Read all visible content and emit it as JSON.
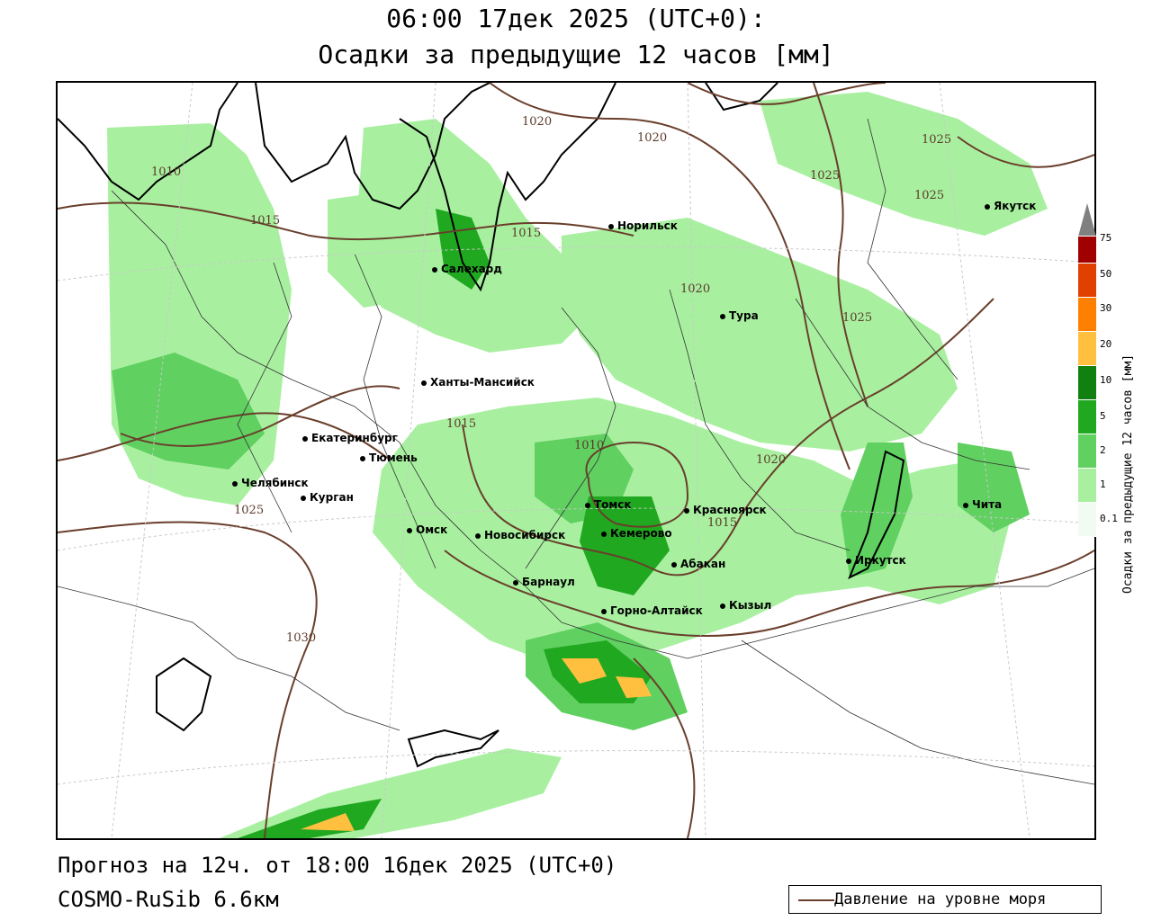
{
  "title": {
    "line1": "06:00 17дек 2025 (UTC+0):",
    "line2": "Осадки за предыдущие 12 часов [мм]"
  },
  "footer": {
    "forecast": "Прогноз на 12ч. от 18:00 16дек 2025 (UTC+0)",
    "model": "COSMO-RuSib 6.6км",
    "legend_label": "Давление на уровне моря"
  },
  "colorbar": {
    "label": "Осадки за предыдущие 12 часов [мм]",
    "ticks": [
      "0.1",
      "1",
      "2",
      "5",
      "10",
      "20",
      "30",
      "50",
      "75"
    ],
    "colors": [
      "#f2fbf2",
      "#a8f0a0",
      "#60d060",
      "#20a820",
      "#108010",
      "#ffc040",
      "#ff8000",
      "#e04000",
      "#a00000",
      "#808080"
    ]
  },
  "cities": [
    {
      "name": "Якутск"
    },
    {
      "name": "Норильск"
    },
    {
      "name": "Салехард"
    },
    {
      "name": "Тура"
    },
    {
      "name": "Ханты-Мансийск"
    },
    {
      "name": "Екатеринбург"
    },
    {
      "name": "Тюмень"
    },
    {
      "name": "Челябинск"
    },
    {
      "name": "Курган"
    },
    {
      "name": "Омск"
    },
    {
      "name": "Новосибирск"
    },
    {
      "name": "Томск"
    },
    {
      "name": "Кемерово"
    },
    {
      "name": "Красноярск"
    },
    {
      "name": "Абакан"
    },
    {
      "name": "Барнаул"
    },
    {
      "name": "Горно-Алтайск"
    },
    {
      "name": "Кызыл"
    },
    {
      "name": "Иркутск"
    },
    {
      "name": "Чита"
    }
  ],
  "isobars": [
    "1020",
    "1020",
    "1025",
    "1010",
    "1015",
    "1015",
    "1025",
    "1025",
    "1020",
    "1025",
    "1015",
    "1010",
    "1020",
    "1015",
    "1025",
    "1030"
  ]
}
